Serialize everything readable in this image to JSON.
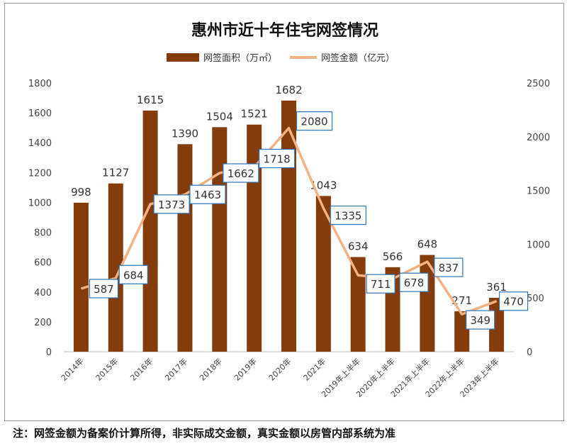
{
  "chart_data": {
    "type": "bar",
    "title": "惠州市近十年住宅网签情况",
    "categories": [
      "2014年",
      "2015年",
      "2016年",
      "2017年",
      "2018年",
      "2019年",
      "2020年",
      "2021年",
      "2019年上半年",
      "2020年上半年",
      "2021年上半年",
      "2022年上半年",
      "2023年上半年"
    ],
    "series": [
      {
        "name": "网签面积（万㎡）",
        "type": "bar",
        "axis": "left",
        "color": "#843c0c",
        "values": [
          998,
          1127,
          1615,
          1390,
          1504,
          1521,
          1682,
          1043,
          634,
          566,
          648,
          271,
          361
        ],
        "labels": [
          "998",
          "1127",
          "1615",
          "1390",
          "1504",
          "1521",
          "1682",
          "1043",
          "634",
          "566",
          "648",
          "271",
          "361"
        ]
      },
      {
        "name": "网签金额（亿元）",
        "type": "line",
        "axis": "right",
        "color": "#f4b183",
        "values": [
          587,
          684,
          1373,
          1463,
          1662,
          1718,
          2080,
          1335,
          711,
          678,
          837,
          349,
          470
        ],
        "labels": [
          "587",
          "684",
          "1373",
          "1463",
          "1662",
          "1718",
          "2080",
          "1335",
          "711",
          "678",
          "837",
          "349",
          "470"
        ]
      }
    ],
    "y_left": {
      "ylim": [
        0,
        1800
      ],
      "ticks": [
        "0",
        "200",
        "400",
        "600",
        "800",
        "1000",
        "1200",
        "1400",
        "1600",
        "1800"
      ]
    },
    "y_right": {
      "ylim": [
        0,
        2500
      ],
      "ticks": [
        "0",
        "500",
        "1000",
        "1500",
        "2000",
        "2500"
      ]
    },
    "grid": false,
    "legend": "top-center",
    "label_box_color": "#2e75b6"
  },
  "note": "注：网签金额为备案价计算所得，非实际成交金额，真实金额以房管内部系统为准"
}
